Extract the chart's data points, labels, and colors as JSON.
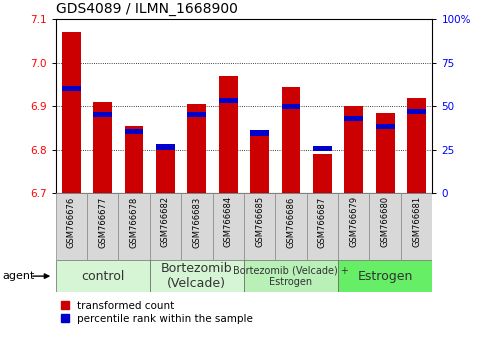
{
  "title": "GDS4089 / ILMN_1668900",
  "samples": [
    "GSM766676",
    "GSM766677",
    "GSM766678",
    "GSM766682",
    "GSM766683",
    "GSM766684",
    "GSM766685",
    "GSM766686",
    "GSM766687",
    "GSM766679",
    "GSM766680",
    "GSM766681"
  ],
  "red_values": [
    7.07,
    6.91,
    6.855,
    6.8,
    6.905,
    6.97,
    6.845,
    6.945,
    6.79,
    6.9,
    6.885,
    6.92
  ],
  "blue_values": [
    6.935,
    6.875,
    6.835,
    6.8,
    6.875,
    6.908,
    6.832,
    6.893,
    6.796,
    6.865,
    6.847,
    6.882
  ],
  "ymin": 6.7,
  "ymax": 7.1,
  "y_ticks_left": [
    6.7,
    6.8,
    6.9,
    7.0,
    7.1
  ],
  "y_ticks_right": [
    0,
    25,
    50,
    75,
    100
  ],
  "right_ymax_label": "100%",
  "groups": [
    {
      "label": "control",
      "start": 0,
      "end": 3,
      "color": "#d5f5d5",
      "fontsize": 9
    },
    {
      "label": "Bortezomib\n(Velcade)",
      "start": 3,
      "end": 6,
      "color": "#d5f5d5",
      "fontsize": 9
    },
    {
      "label": "Bortezomib (Velcade) +\nEstrogen",
      "start": 6,
      "end": 9,
      "color": "#b8f0b8",
      "fontsize": 7
    },
    {
      "label": "Estrogen",
      "start": 9,
      "end": 12,
      "color": "#66ee66",
      "fontsize": 9
    }
  ],
  "bar_color_red": "#cc0000",
  "bar_color_blue": "#0000cc",
  "bar_width": 0.6,
  "blue_bar_height": 0.012,
  "legend_red": "transformed count",
  "legend_blue": "percentile rank within the sample",
  "agent_label": "agent",
  "title_fontsize": 10,
  "tick_fontsize": 7.5,
  "sample_fontsize": 6.0,
  "group_label_color": "#333333"
}
